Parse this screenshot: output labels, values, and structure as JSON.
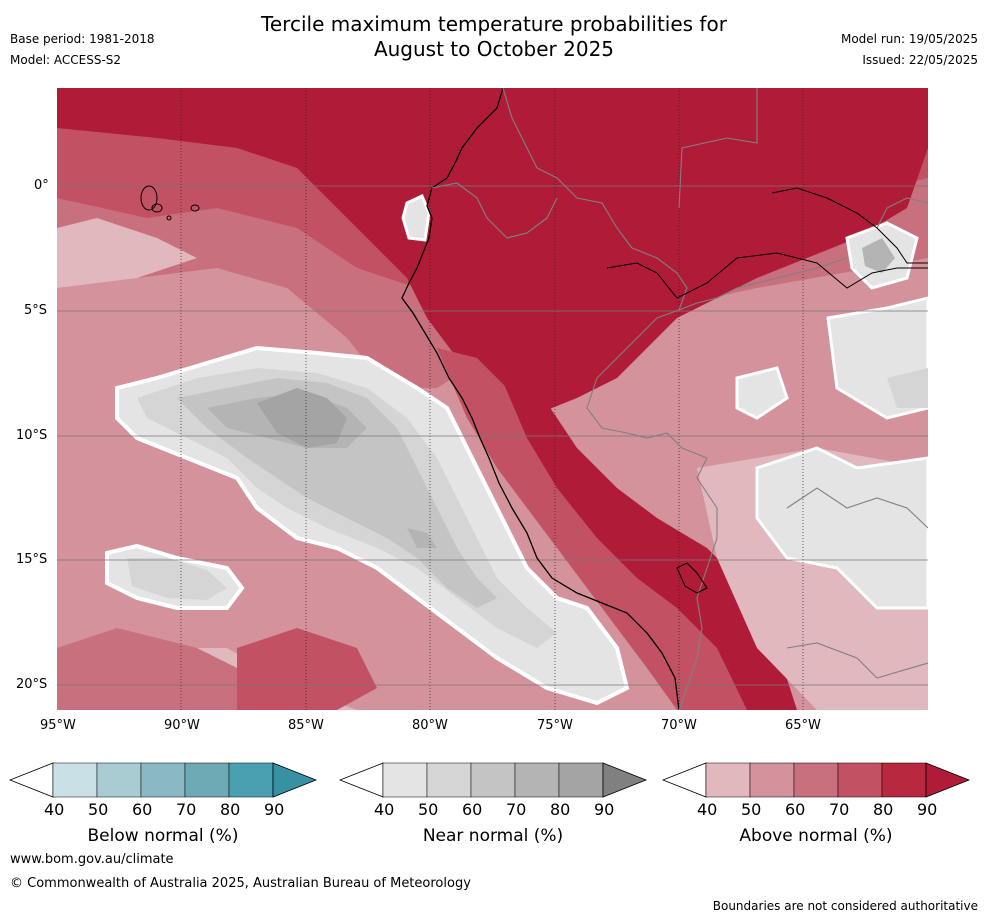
{
  "title": {
    "line1": "Tercile maximum temperature probabilities for",
    "line2": "August to October 2025"
  },
  "meta": {
    "base_period": "Base period: 1981-2018",
    "model": "Model: ACCESS-S2",
    "model_run": "Model run: 19/05/2025",
    "issued": "Issued: 22/05/2025"
  },
  "map": {
    "lon_ticks": [
      "95°W",
      "90°W",
      "85°W",
      "80°W",
      "75°W",
      "70°W",
      "65°W"
    ],
    "lat_ticks": [
      "0°",
      "5°S",
      "10°S",
      "15°S",
      "20°S"
    ],
    "colors": {
      "above": [
        "#e0b8be",
        "#d4939c",
        "#c8707e",
        "#c25263",
        "#b01c38",
        "#a01830"
      ],
      "near": [
        "#e4e4e4",
        "#d5d5d5",
        "#c4c4c4",
        "#b4b4b4",
        "#a4a4a4"
      ],
      "below": [
        "#c8e0e6",
        "#a8ccd2",
        "#8ab8c4",
        "#6eaab6",
        "#4aa0b0",
        "#3891a3"
      ]
    }
  },
  "colorbars": [
    {
      "label": "Below normal (%)",
      "ticks": [
        "40",
        "50",
        "60",
        "70",
        "80",
        "90"
      ],
      "colors": [
        "#c8e0e6",
        "#a8ccd2",
        "#8ab8c4",
        "#6eaab6",
        "#4aa0b0"
      ],
      "over_color": "#3891a3"
    },
    {
      "label": "Near normal (%)",
      "ticks": [
        "40",
        "50",
        "60",
        "70",
        "80",
        "90"
      ],
      "colors": [
        "#e4e4e4",
        "#d5d5d5",
        "#c4c4c4",
        "#b4b4b4",
        "#a4a4a4"
      ],
      "over_color": "#808080"
    },
    {
      "label": "Above normal (%)",
      "ticks": [
        "40",
        "50",
        "60",
        "70",
        "80",
        "90"
      ],
      "colors": [
        "#e0b8be",
        "#d4939c",
        "#c8707e",
        "#c25263",
        "#b8293f"
      ],
      "over_color": "#b01c38"
    }
  ],
  "footer": {
    "url": "www.bom.gov.au/climate",
    "copyright": "© Commonwealth of Australia 2025, Australian Bureau of Meteorology",
    "disclaimer": "Boundaries are not considered authoritative"
  }
}
